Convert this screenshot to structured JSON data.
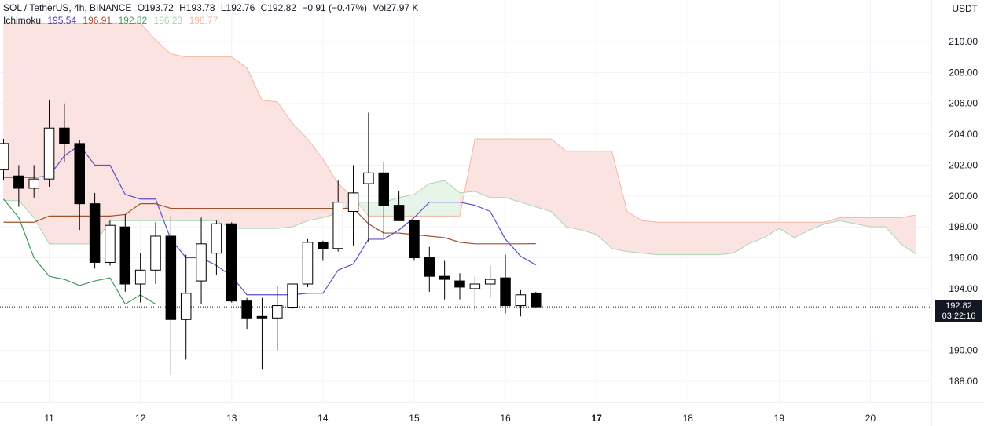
{
  "header": {
    "symbol": "SOL / TetherUS, 4h, BINANCE",
    "open": "O193.72",
    "high": "H193.78",
    "low": "L192.76",
    "close": "C192.82",
    "change": "−0.91 (−0.47%)",
    "volume": "Vol27.97 K"
  },
  "indicator": {
    "name": "Ichimoku",
    "values": [
      "195.54",
      "196.91",
      "192.82",
      "196.23",
      "198.77"
    ],
    "colors": [
      "#4a3ab5",
      "#a0522d",
      "#3d9a5b",
      "#a5d6b4",
      "#f0b8a0"
    ]
  },
  "unit_label": "USDT",
  "last_price": {
    "value": "192.82",
    "countdown": "03:22:16"
  },
  "colors": {
    "bull": "#ffffff",
    "bear": "#000000",
    "conversion": "#5b4fcf",
    "base": "#a0522d",
    "lagging": "#3d9a5b",
    "cloud_bear": "#fbe3e1",
    "cloud_bull": "#e6f4ea",
    "span_a": "#a5d6b4",
    "span_b": "#f0b8a0"
  },
  "chart_data": {
    "type": "candlestick",
    "ylim": [
      186.3,
      212.4
    ],
    "y_ticks": [
      188,
      190,
      194,
      196,
      198,
      200,
      202,
      204,
      206,
      208,
      210
    ],
    "x_ticks": [
      {
        "label": "11",
        "t": 3.0,
        "bold": false
      },
      {
        "label": "12",
        "t": 9.0,
        "bold": false
      },
      {
        "label": "13",
        "t": 15.0,
        "bold": false
      },
      {
        "label": "14",
        "t": 21.0,
        "bold": false
      },
      {
        "label": "15",
        "t": 27.0,
        "bold": false
      },
      {
        "label": "16",
        "t": 33.0,
        "bold": false
      },
      {
        "label": "17",
        "t": 39.0,
        "bold": true
      },
      {
        "label": "18",
        "t": 45.0,
        "bold": false
      },
      {
        "label": "19",
        "t": 51.0,
        "bold": false
      },
      {
        "label": "20",
        "t": 57.0,
        "bold": false
      }
    ],
    "candles": [
      {
        "t": 0,
        "o": 201.7,
        "h": 203.7,
        "l": 201.0,
        "c": 203.4
      },
      {
        "t": 1,
        "o": 201.3,
        "h": 202.0,
        "l": 199.3,
        "c": 200.5
      },
      {
        "t": 2,
        "o": 200.5,
        "h": 202.0,
        "l": 199.9,
        "c": 201.1
      },
      {
        "t": 3,
        "o": 201.1,
        "h": 206.2,
        "l": 200.6,
        "c": 204.4
      },
      {
        "t": 4,
        "o": 204.4,
        "h": 206.0,
        "l": 202.2,
        "c": 203.4
      },
      {
        "t": 5,
        "o": 203.4,
        "h": 203.6,
        "l": 197.8,
        "c": 199.5
      },
      {
        "t": 6,
        "o": 199.5,
        "h": 200.2,
        "l": 195.3,
        "c": 195.7
      },
      {
        "t": 7,
        "o": 195.7,
        "h": 198.4,
        "l": 195.5,
        "c": 198.1
      },
      {
        "t": 8,
        "o": 198.0,
        "h": 198.8,
        "l": 193.8,
        "c": 194.3
      },
      {
        "t": 9,
        "o": 194.3,
        "h": 196.3,
        "l": 193.1,
        "c": 195.2
      },
      {
        "t": 10,
        "o": 195.2,
        "h": 198.3,
        "l": 194.3,
        "c": 197.4
      },
      {
        "t": 11,
        "o": 197.4,
        "h": 198.7,
        "l": 188.4,
        "c": 192.0
      },
      {
        "t": 12,
        "o": 192.0,
        "h": 196.2,
        "l": 189.4,
        "c": 193.7
      },
      {
        "t": 13,
        "o": 194.5,
        "h": 198.6,
        "l": 193.0,
        "c": 196.9
      },
      {
        "t": 14,
        "o": 196.3,
        "h": 198.4,
        "l": 194.9,
        "c": 198.2
      },
      {
        "t": 15,
        "o": 198.2,
        "h": 198.3,
        "l": 193.1,
        "c": 193.2
      },
      {
        "t": 16,
        "o": 193.2,
        "h": 193.4,
        "l": 191.4,
        "c": 192.1
      },
      {
        "t": 17,
        "o": 192.2,
        "h": 193.4,
        "l": 188.8,
        "c": 192.1
      },
      {
        "t": 18,
        "o": 192.1,
        "h": 194.2,
        "l": 190.0,
        "c": 192.9
      },
      {
        "t": 19,
        "o": 192.8,
        "h": 194.3,
        "l": 192.7,
        "c": 194.3
      },
      {
        "t": 20,
        "o": 194.3,
        "h": 197.2,
        "l": 194.1,
        "c": 197.0
      },
      {
        "t": 21,
        "o": 197.0,
        "h": 197.1,
        "l": 195.8,
        "c": 196.6
      },
      {
        "t": 22,
        "o": 196.6,
        "h": 201.0,
        "l": 196.4,
        "c": 199.6
      },
      {
        "t": 23,
        "o": 199.0,
        "h": 202.0,
        "l": 196.8,
        "c": 200.2
      },
      {
        "t": 24,
        "o": 200.8,
        "h": 205.4,
        "l": 197.0,
        "c": 201.5
      },
      {
        "t": 25,
        "o": 201.5,
        "h": 202.2,
        "l": 197.3,
        "c": 199.4
      },
      {
        "t": 26,
        "o": 199.4,
        "h": 200.3,
        "l": 198.4,
        "c": 198.4
      },
      {
        "t": 27,
        "o": 198.4,
        "h": 198.4,
        "l": 195.8,
        "c": 196.0
      },
      {
        "t": 28,
        "o": 196.0,
        "h": 196.7,
        "l": 193.8,
        "c": 194.8
      },
      {
        "t": 29,
        "o": 194.8,
        "h": 195.8,
        "l": 193.3,
        "c": 194.6
      },
      {
        "t": 30,
        "o": 194.5,
        "h": 195.0,
        "l": 193.3,
        "c": 194.1
      },
      {
        "t": 31,
        "o": 194.0,
        "h": 194.8,
        "l": 192.6,
        "c": 194.3
      },
      {
        "t": 32,
        "o": 194.3,
        "h": 195.5,
        "l": 193.4,
        "c": 194.6
      },
      {
        "t": 33,
        "o": 194.7,
        "h": 196.2,
        "l": 192.4,
        "c": 192.9
      },
      {
        "t": 34,
        "o": 192.9,
        "h": 193.9,
        "l": 192.2,
        "c": 193.6
      },
      {
        "t": 35,
        "o": 193.72,
        "h": 193.78,
        "l": 192.76,
        "c": 192.82
      }
    ],
    "conversion_line": [
      [
        0,
        201.2
      ],
      [
        1,
        201.2
      ],
      [
        2,
        201.2
      ],
      [
        3,
        201.3
      ],
      [
        4,
        202.6
      ],
      [
        5,
        203.3
      ],
      [
        6,
        202.0
      ],
      [
        7,
        202.0
      ],
      [
        8,
        200.1
      ],
      [
        9,
        199.8
      ],
      [
        10,
        199.8
      ],
      [
        11,
        197.2
      ],
      [
        12,
        196.0
      ],
      [
        13,
        196.0
      ],
      [
        14,
        195.5
      ],
      [
        15,
        194.8
      ],
      [
        16,
        193.6
      ],
      [
        17,
        193.6
      ],
      [
        18,
        193.6
      ],
      [
        19,
        193.6
      ],
      [
        20,
        193.7
      ],
      [
        21,
        193.7
      ],
      [
        22,
        195.2
      ],
      [
        23,
        195.6
      ],
      [
        24,
        197.2
      ],
      [
        25,
        197.2
      ],
      [
        26,
        197.8
      ],
      [
        27,
        198.6
      ],
      [
        28,
        199.6
      ],
      [
        29,
        199.6
      ],
      [
        30,
        199.6
      ],
      [
        31,
        199.4
      ],
      [
        32,
        199.0
      ],
      [
        33,
        197.2
      ],
      [
        34,
        196.1
      ],
      [
        35,
        195.54
      ]
    ],
    "base_line": [
      [
        0,
        198.3
      ],
      [
        1,
        198.3
      ],
      [
        2,
        198.3
      ],
      [
        3,
        198.7
      ],
      [
        4,
        198.7
      ],
      [
        5,
        198.7
      ],
      [
        6,
        198.7
      ],
      [
        7,
        198.7
      ],
      [
        8,
        198.8
      ],
      [
        9,
        199.5
      ],
      [
        10,
        199.5
      ],
      [
        11,
        199.2
      ],
      [
        12,
        199.2
      ],
      [
        13,
        199.2
      ],
      [
        14,
        199.2
      ],
      [
        15,
        199.2
      ],
      [
        16,
        199.2
      ],
      [
        17,
        199.2
      ],
      [
        18,
        199.2
      ],
      [
        19,
        199.2
      ],
      [
        20,
        199.2
      ],
      [
        21,
        199.2
      ],
      [
        22,
        199.2
      ],
      [
        23,
        199.2
      ],
      [
        24,
        198.2
      ],
      [
        25,
        197.6
      ],
      [
        26,
        197.6
      ],
      [
        27,
        197.5
      ],
      [
        28,
        197.4
      ],
      [
        29,
        197.3
      ],
      [
        30,
        197.0
      ],
      [
        31,
        196.9
      ],
      [
        32,
        196.9
      ],
      [
        33,
        196.9
      ],
      [
        34,
        196.9
      ],
      [
        35,
        196.91
      ]
    ],
    "lagging_span": [
      [
        0,
        199.8
      ],
      [
        1,
        198.6
      ],
      [
        2,
        196.0
      ],
      [
        3,
        194.8
      ],
      [
        4,
        194.6
      ],
      [
        5,
        194.2
      ],
      [
        6,
        194.5
      ],
      [
        7,
        194.7
      ],
      [
        8,
        193.0
      ],
      [
        9,
        193.6
      ],
      [
        10,
        193.0
      ]
    ],
    "span_a": [
      [
        0,
        199.7
      ],
      [
        1,
        199.7
      ],
      [
        2,
        198.6
      ],
      [
        3,
        196.9
      ],
      [
        4,
        196.9
      ],
      [
        5,
        196.9
      ],
      [
        6,
        196.9
      ],
      [
        7,
        198.4
      ],
      [
        8,
        198.4
      ],
      [
        9,
        198.4
      ],
      [
        10,
        198.4
      ],
      [
        11,
        198.4
      ],
      [
        12,
        198.4
      ],
      [
        13,
        198.4
      ],
      [
        14,
        198.4
      ],
      [
        15,
        197.9
      ],
      [
        16,
        197.9
      ],
      [
        17,
        197.9
      ],
      [
        18,
        197.9
      ],
      [
        19,
        198.0
      ],
      [
        20,
        198.4
      ],
      [
        21,
        198.6
      ],
      [
        22,
        198.9
      ],
      [
        23,
        199.6
      ],
      [
        24,
        199.6
      ],
      [
        25,
        199.6
      ],
      [
        26,
        199.9
      ],
      [
        27,
        200.1
      ],
      [
        28,
        200.8
      ],
      [
        29,
        201.0
      ],
      [
        30,
        200.2
      ],
      [
        31,
        200.3
      ],
      [
        32,
        199.9
      ],
      [
        33,
        199.9
      ],
      [
        34,
        199.6
      ],
      [
        35,
        199.3
      ],
      [
        36,
        199.0
      ],
      [
        37,
        198.0
      ],
      [
        38,
        197.8
      ],
      [
        39,
        197.5
      ],
      [
        40,
        196.6
      ],
      [
        41,
        196.4
      ],
      [
        42,
        196.3
      ],
      [
        43,
        196.2
      ],
      [
        44,
        196.2
      ],
      [
        45,
        196.2
      ],
      [
        46,
        196.2
      ],
      [
        47,
        196.2
      ],
      [
        48,
        196.3
      ],
      [
        49,
        196.9
      ],
      [
        50,
        197.3
      ],
      [
        51,
        197.9
      ],
      [
        52,
        197.3
      ],
      [
        53,
        197.8
      ],
      [
        54,
        198.2
      ],
      [
        55,
        198.4
      ],
      [
        56,
        198.2
      ],
      [
        57,
        198.0
      ],
      [
        58,
        198.0
      ],
      [
        59,
        196.9
      ],
      [
        60,
        196.23
      ]
    ],
    "span_b": [
      [
        0,
        211.2
      ],
      [
        1,
        211.2
      ],
      [
        2,
        211.2
      ],
      [
        3,
        211.2
      ],
      [
        4,
        211.2
      ],
      [
        5,
        211.2
      ],
      [
        6,
        211.2
      ],
      [
        7,
        211.2
      ],
      [
        8,
        211.2
      ],
      [
        9,
        211.2
      ],
      [
        10,
        210.1
      ],
      [
        11,
        209.2
      ],
      [
        12,
        209.0
      ],
      [
        13,
        209.0
      ],
      [
        14,
        209.0
      ],
      [
        15,
        209.0
      ],
      [
        16,
        208.3
      ],
      [
        17,
        206.2
      ],
      [
        18,
        206.1
      ],
      [
        19,
        204.7
      ],
      [
        20,
        203.7
      ],
      [
        21,
        202.4
      ],
      [
        22,
        200.8
      ],
      [
        23,
        199.9
      ],
      [
        24,
        198.7
      ],
      [
        25,
        198.7
      ],
      [
        26,
        198.7
      ],
      [
        27,
        198.7
      ],
      [
        28,
        198.7
      ],
      [
        29,
        198.7
      ],
      [
        30,
        198.7
      ],
      [
        31,
        203.7
      ],
      [
        32,
        203.7
      ],
      [
        33,
        203.7
      ],
      [
        34,
        203.7
      ],
      [
        35,
        203.7
      ],
      [
        36,
        203.7
      ],
      [
        37,
        202.9
      ],
      [
        38,
        202.9
      ],
      [
        39,
        202.9
      ],
      [
        40,
        202.9
      ],
      [
        41,
        199.0
      ],
      [
        42,
        198.4
      ],
      [
        43,
        198.3
      ],
      [
        44,
        198.3
      ],
      [
        45,
        198.3
      ],
      [
        46,
        198.3
      ],
      [
        47,
        198.3
      ],
      [
        48,
        198.3
      ],
      [
        49,
        198.3
      ],
      [
        50,
        198.3
      ],
      [
        51,
        198.3
      ],
      [
        52,
        198.3
      ],
      [
        53,
        198.3
      ],
      [
        54,
        198.3
      ],
      [
        55,
        198.6
      ],
      [
        56,
        198.6
      ],
      [
        57,
        198.6
      ],
      [
        58,
        198.6
      ],
      [
        59,
        198.6
      ],
      [
        60,
        198.77
      ]
    ]
  }
}
